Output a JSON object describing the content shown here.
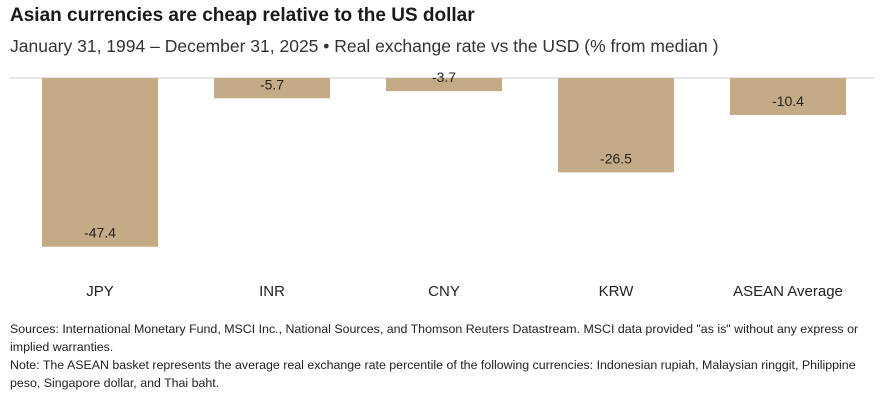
{
  "title": "Asian currencies are cheap relative to the US dollar",
  "subtitle": "January  31, 1994 – December 31, 2025 • Real exchange rate vs the USD (% from median )",
  "chart_data": {
    "type": "bar",
    "categories": [
      "JPY",
      "INR",
      "CNY",
      "KRW",
      "ASEAN Average"
    ],
    "values": [
      -47.4,
      -5.7,
      -3.7,
      -26.5,
      -10.4
    ],
    "value_labels": [
      "-47.4",
      "-5.7",
      "-3.7",
      "-26.5",
      "-10.4"
    ],
    "ylim": [
      -50,
      0
    ],
    "grid": false,
    "bar_color": "#c5ab85"
  },
  "footnotes": {
    "sources": "Sources: International Monetary Fund, MSCI Inc., National Sources, and Thomson Reuters Datastream. MSCI data provided \"as is\" without any express or implied warranties.",
    "note": "Note: The ASEAN basket represents the average real exchange rate percentile of the following currencies: Indonesian rupiah, Malaysian ringgit, Philippine peso, Singapore dollar, and Thai baht."
  }
}
